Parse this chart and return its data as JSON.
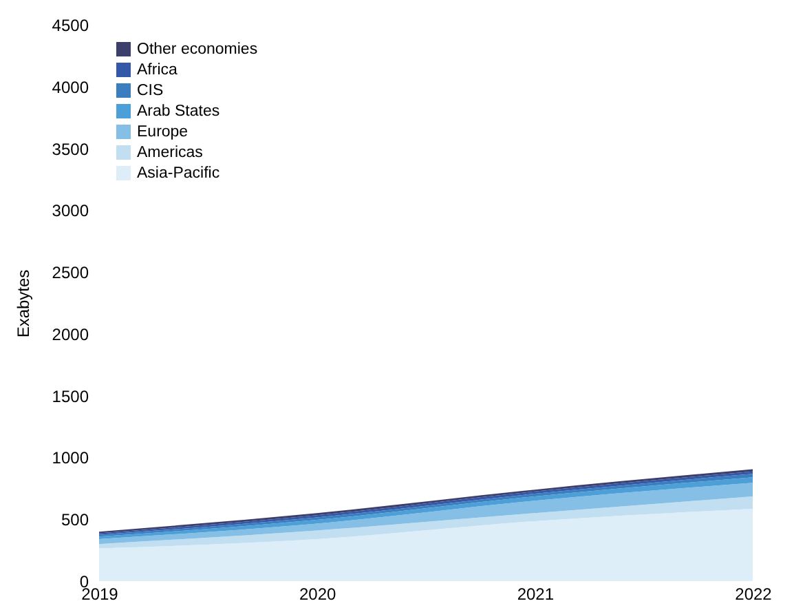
{
  "chart_data": {
    "type": "area",
    "ylabel": "Exabytes",
    "stacked": true,
    "legend": "top left",
    "grid": false,
    "categories": [
      "2019",
      "2020",
      "2021",
      "2022"
    ],
    "ylim": [
      0,
      4500
    ],
    "yticks": [
      0,
      500,
      1000,
      1500,
      2000,
      2500,
      3000,
      3500,
      4000,
      4500
    ],
    "series": [
      {
        "name": "Asia-Pacific",
        "color": "#deeef8",
        "values": [
          265,
          340,
          485,
          585
        ]
      },
      {
        "name": "Americas",
        "color": "#c2dff1",
        "values": [
          35,
          70,
          65,
          100
        ]
      },
      {
        "name": "Europe",
        "color": "#86bfe5",
        "values": [
          40,
          55,
          100,
          110
        ]
      },
      {
        "name": "Arab States",
        "color": "#4d9fd8",
        "values": [
          20,
          30,
          35,
          45
        ]
      },
      {
        "name": "CIS",
        "color": "#3a7ec0",
        "values": [
          15,
          20,
          22,
          27
        ]
      },
      {
        "name": "Africa",
        "color": "#3458a8",
        "values": [
          12,
          18,
          18,
          20
        ]
      },
      {
        "name": "Other economies",
        "color": "#3c3f6c",
        "values": [
          13,
          17,
          15,
          18
        ]
      }
    ]
  }
}
